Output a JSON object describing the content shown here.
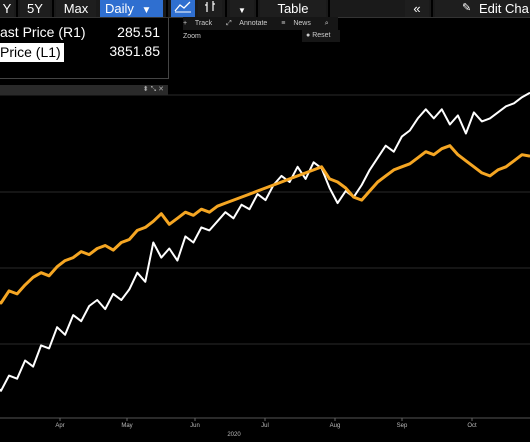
{
  "toolbar": {
    "range_buttons": [
      "Y",
      "5Y",
      "Max"
    ],
    "interval": "Daily",
    "table_label": "Table",
    "collapse_glyph": "«",
    "edit_label": "Edit Cha",
    "accent_color": "#2f6fd0"
  },
  "chart_menu": {
    "track": "Track",
    "annotate": "Annotate",
    "news": "News",
    "zoom": "Zoom",
    "reset": "Reset"
  },
  "legend": {
    "items": [
      {
        "label": "ast Price (R1)",
        "value": "285.51",
        "color": "#ffffff"
      },
      {
        "label": "Price (L1)",
        "value": "3851.85",
        "color": "#f5a623"
      }
    ],
    "footer_icons": "⬍ ⤡ ✕"
  },
  "chart_data": {
    "type": "line",
    "year_label": "2020",
    "x_ticks": [
      "Apr",
      "May",
      "Jun",
      "Jul",
      "Aug",
      "Sep",
      "Oct"
    ],
    "series": [
      {
        "name": "ast Price (R1)",
        "color": "#ffffff",
        "values": [
          58,
          63,
          58,
          68,
          66,
          78,
          74,
          88,
          86,
          100,
          95,
          108,
          104,
          114,
          118,
          112,
          122,
          118,
          125,
          136,
          130,
          156,
          146,
          152,
          144,
          160,
          156,
          166,
          164,
          170,
          176,
          172,
          181,
          178,
          188,
          184,
          194,
          200,
          196,
          206,
          198,
          209,
          205,
          192,
          182,
          190,
          186,
          194,
          204,
          212,
          220,
          216,
          226,
          230,
          238,
          244,
          238,
          244,
          234,
          240,
          228,
          242,
          236,
          238,
          242,
          246,
          248,
          252,
          255
        ]
      },
      {
        "name": "Price (L1)",
        "color": "#f5a623",
        "values": [
          112,
          118,
          116,
          124,
          122,
          128,
          133,
          136,
          134,
          140,
          144,
          146,
          150,
          148,
          152,
          154,
          151,
          156,
          158,
          164,
          166,
          170,
          175,
          168,
          172,
          176,
          174,
          178,
          176,
          180,
          182,
          184,
          186,
          188,
          190,
          192,
          194,
          196,
          198,
          200,
          202,
          204,
          206,
          198,
          196,
          192,
          186,
          184,
          190,
          196,
          200,
          204,
          206,
          208,
          212,
          216,
          214,
          218,
          220,
          214,
          210,
          206,
          202,
          200,
          204,
          206,
          210,
          214,
          213
        ]
      }
    ]
  }
}
